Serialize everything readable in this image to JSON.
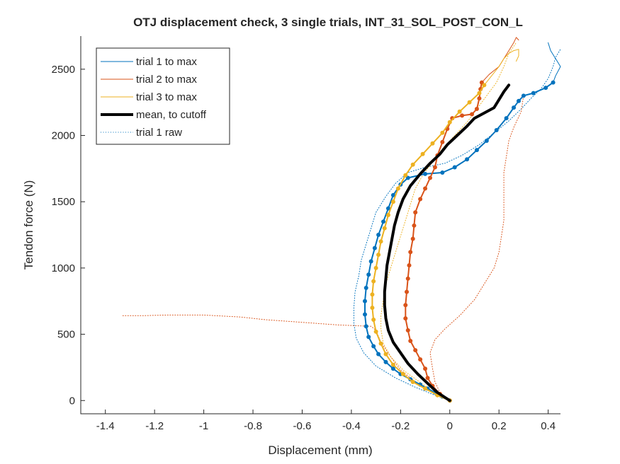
{
  "chart_data": {
    "type": "line",
    "title": "OTJ displacement check, 3 single trials, INT_31_SOL_POST_CON_L",
    "xlabel": "Displacement (mm)",
    "ylabel": "Tendon force (N)",
    "xlim": [
      -1.5,
      0.45
    ],
    "ylim": [
      -100,
      2750
    ],
    "xticks": [
      -1.4,
      -1.2,
      -1,
      -0.8,
      -0.6,
      -0.4,
      -0.2,
      0,
      0.2,
      0.4
    ],
    "xtick_labels": [
      "-1.4",
      "-1.2",
      "-1",
      "-0.8",
      "-0.6",
      "-0.4",
      "-0.2",
      "0",
      "0.2",
      "0.4"
    ],
    "yticks": [
      0,
      500,
      1000,
      1500,
      2000,
      2500
    ],
    "ytick_labels": [
      "0",
      "500",
      "1000",
      "1500",
      "2000",
      "2500"
    ],
    "grid": false,
    "legend_position": "top-left",
    "legend_entries": [
      "trial 1 to max",
      "trial 2 to max",
      "trial 3 to max",
      "mean, to cutoff",
      "trial 1 raw"
    ],
    "series": [
      {
        "name": "trial 1 to max",
        "color": "#0072BD",
        "style": "solid-dots",
        "points": [
          [
            0.0,
            0
          ],
          [
            -0.03,
            30
          ],
          [
            -0.06,
            60
          ],
          [
            -0.09,
            90
          ],
          [
            -0.12,
            120
          ],
          [
            -0.16,
            160
          ],
          [
            -0.2,
            200
          ],
          [
            -0.23,
            240
          ],
          [
            -0.26,
            290
          ],
          [
            -0.29,
            350
          ],
          [
            -0.31,
            410
          ],
          [
            -0.33,
            480
          ],
          [
            -0.34,
            560
          ],
          [
            -0.345,
            650
          ],
          [
            -0.345,
            750
          ],
          [
            -0.34,
            850
          ],
          [
            -0.33,
            950
          ],
          [
            -0.32,
            1050
          ],
          [
            -0.305,
            1150
          ],
          [
            -0.29,
            1250
          ],
          [
            -0.27,
            1350
          ],
          [
            -0.25,
            1450
          ],
          [
            -0.23,
            1550
          ],
          [
            -0.2,
            1630
          ],
          [
            -0.17,
            1680
          ],
          [
            -0.1,
            1710
          ],
          [
            -0.03,
            1720
          ],
          [
            0.02,
            1760
          ],
          [
            0.07,
            1820
          ],
          [
            0.11,
            1890
          ],
          [
            0.15,
            1960
          ],
          [
            0.19,
            2040
          ],
          [
            0.23,
            2130
          ],
          [
            0.26,
            2210
          ],
          [
            0.28,
            2260
          ],
          [
            0.3,
            2300
          ],
          [
            0.34,
            2320
          ],
          [
            0.39,
            2360
          ],
          [
            0.42,
            2400
          ]
        ]
      },
      {
        "name": "trial 1 to max",
        "color": "#0072BD",
        "style": "thin",
        "points": [
          [
            0.42,
            2400
          ],
          [
            0.43,
            2450
          ],
          [
            0.45,
            2520
          ],
          [
            0.43,
            2580
          ],
          [
            0.41,
            2640
          ],
          [
            0.4,
            2700
          ]
        ]
      },
      {
        "name": "trial 2 to max",
        "color": "#D95319",
        "style": "solid-dots",
        "points": [
          [
            0.0,
            0
          ],
          [
            -0.04,
            50
          ],
          [
            -0.07,
            110
          ],
          [
            -0.09,
            170
          ],
          [
            -0.1,
            240
          ],
          [
            -0.12,
            310
          ],
          [
            -0.14,
            380
          ],
          [
            -0.16,
            450
          ],
          [
            -0.17,
            530
          ],
          [
            -0.18,
            620
          ],
          [
            -0.18,
            720
          ],
          [
            -0.175,
            820
          ],
          [
            -0.17,
            920
          ],
          [
            -0.165,
            1020
          ],
          [
            -0.16,
            1120
          ],
          [
            -0.15,
            1220
          ],
          [
            -0.145,
            1320
          ],
          [
            -0.14,
            1420
          ],
          [
            -0.12,
            1520
          ],
          [
            -0.1,
            1600
          ],
          [
            -0.08,
            1680
          ],
          [
            -0.06,
            1760
          ],
          [
            -0.05,
            1850
          ],
          [
            -0.03,
            1950
          ],
          [
            -0.01,
            2050
          ],
          [
            0.01,
            2130
          ],
          [
            0.05,
            2150
          ],
          [
            0.09,
            2160
          ],
          [
            0.11,
            2200
          ],
          [
            0.12,
            2280
          ],
          [
            0.125,
            2350
          ],
          [
            0.13,
            2400
          ]
        ]
      },
      {
        "name": "trial 2 to max",
        "color": "#D95319",
        "style": "thin",
        "points": [
          [
            0.13,
            2400
          ],
          [
            0.16,
            2460
          ],
          [
            0.2,
            2520
          ],
          [
            0.22,
            2580
          ],
          [
            0.24,
            2640
          ],
          [
            0.26,
            2700
          ],
          [
            0.27,
            2740
          ],
          [
            0.28,
            2720
          ]
        ]
      },
      {
        "name": "trial 3 to max",
        "color": "#EDB120",
        "style": "solid-dots",
        "points": [
          [
            0.0,
            0
          ],
          [
            -0.05,
            40
          ],
          [
            -0.1,
            90
          ],
          [
            -0.15,
            140
          ],
          [
            -0.19,
            200
          ],
          [
            -0.23,
            270
          ],
          [
            -0.26,
            350
          ],
          [
            -0.28,
            430
          ],
          [
            -0.3,
            520
          ],
          [
            -0.31,
            610
          ],
          [
            -0.315,
            700
          ],
          [
            -0.315,
            800
          ],
          [
            -0.31,
            900
          ],
          [
            -0.3,
            1000
          ],
          [
            -0.29,
            1100
          ],
          [
            -0.28,
            1200
          ],
          [
            -0.265,
            1300
          ],
          [
            -0.25,
            1400
          ],
          [
            -0.23,
            1500
          ],
          [
            -0.21,
            1600
          ],
          [
            -0.18,
            1700
          ],
          [
            -0.15,
            1780
          ],
          [
            -0.11,
            1860
          ],
          [
            -0.07,
            1940
          ],
          [
            -0.03,
            2020
          ],
          [
            0.0,
            2100
          ],
          [
            0.04,
            2180
          ],
          [
            0.08,
            2250
          ],
          [
            0.12,
            2320
          ],
          [
            0.14,
            2380
          ]
        ]
      },
      {
        "name": "trial 3 to max",
        "color": "#EDB120",
        "style": "thin",
        "points": [
          [
            0.14,
            2380
          ],
          [
            0.17,
            2450
          ],
          [
            0.2,
            2520
          ],
          [
            0.22,
            2580
          ],
          [
            0.24,
            2620
          ],
          [
            0.26,
            2640
          ],
          [
            0.28,
            2650
          ],
          [
            0.28,
            2600
          ],
          [
            0.27,
            2560
          ]
        ]
      },
      {
        "name": "mean, to cutoff",
        "color": "#000000",
        "style": "thick",
        "points": [
          [
            0.0,
            0
          ],
          [
            -0.05,
            60
          ],
          [
            -0.09,
            130
          ],
          [
            -0.13,
            200
          ],
          [
            -0.17,
            280
          ],
          [
            -0.2,
            360
          ],
          [
            -0.23,
            440
          ],
          [
            -0.25,
            530
          ],
          [
            -0.26,
            620
          ],
          [
            -0.265,
            720
          ],
          [
            -0.265,
            820
          ],
          [
            -0.26,
            920
          ],
          [
            -0.255,
            1020
          ],
          [
            -0.245,
            1120
          ],
          [
            -0.235,
            1220
          ],
          [
            -0.225,
            1320
          ],
          [
            -0.21,
            1420
          ],
          [
            -0.19,
            1520
          ],
          [
            -0.16,
            1620
          ],
          [
            -0.12,
            1710
          ],
          [
            -0.08,
            1790
          ],
          [
            -0.04,
            1860
          ],
          [
            -0.01,
            1930
          ],
          [
            0.03,
            2000
          ],
          [
            0.07,
            2070
          ],
          [
            0.1,
            2130
          ],
          [
            0.14,
            2170
          ],
          [
            0.18,
            2210
          ],
          [
            0.2,
            2270
          ],
          [
            0.22,
            2330
          ],
          [
            0.24,
            2380
          ]
        ]
      },
      {
        "name": "trial 1 raw",
        "color": "#0072BD",
        "style": "dotted",
        "points": [
          [
            0.0,
            0
          ],
          [
            -0.06,
            40
          ],
          [
            -0.14,
            100
          ],
          [
            -0.22,
            170
          ],
          [
            -0.3,
            260
          ],
          [
            -0.35,
            360
          ],
          [
            -0.38,
            470
          ],
          [
            -0.39,
            580
          ],
          [
            -0.39,
            700
          ],
          [
            -0.385,
            820
          ],
          [
            -0.37,
            940
          ],
          [
            -0.36,
            1060
          ],
          [
            -0.34,
            1180
          ],
          [
            -0.32,
            1300
          ],
          [
            -0.3,
            1420
          ],
          [
            -0.26,
            1540
          ],
          [
            -0.22,
            1640
          ],
          [
            -0.17,
            1720
          ],
          [
            -0.1,
            1760
          ],
          [
            -0.02,
            1790
          ],
          [
            0.05,
            1850
          ],
          [
            0.12,
            1930
          ],
          [
            0.18,
            2020
          ],
          [
            0.24,
            2110
          ],
          [
            0.29,
            2200
          ],
          [
            0.33,
            2280
          ],
          [
            0.37,
            2350
          ],
          [
            0.4,
            2430
          ],
          [
            0.42,
            2520
          ],
          [
            0.43,
            2590
          ],
          [
            0.45,
            2650
          ]
        ]
      },
      {
        "name": "",
        "color": "#D95319",
        "style": "dotted",
        "points": [
          [
            0.0,
            0
          ],
          [
            -0.08,
            70
          ],
          [
            -0.14,
            140
          ],
          [
            -0.2,
            230
          ],
          [
            -0.24,
            330
          ],
          [
            -0.28,
            440
          ],
          [
            -0.3,
            530
          ],
          [
            -0.32,
            560
          ],
          [
            -0.45,
            570
          ],
          [
            -0.6,
            590
          ],
          [
            -0.75,
            610
          ],
          [
            -0.85,
            630
          ],
          [
            -1.0,
            645
          ],
          [
            -1.15,
            645
          ],
          [
            -1.25,
            640
          ],
          [
            -1.33,
            640
          ]
        ]
      },
      {
        "name": "",
        "color": "#D95319",
        "style": "dotted",
        "points": [
          [
            0.0,
            0
          ],
          [
            -0.04,
            60
          ],
          [
            -0.06,
            140
          ],
          [
            -0.07,
            240
          ],
          [
            -0.08,
            360
          ],
          [
            -0.06,
            460
          ],
          [
            -0.02,
            540
          ],
          [
            0.04,
            640
          ],
          [
            0.1,
            760
          ],
          [
            0.14,
            880
          ],
          [
            0.18,
            1000
          ],
          [
            0.2,
            1120
          ],
          [
            0.21,
            1240
          ],
          [
            0.22,
            1360
          ],
          [
            0.22,
            1480
          ],
          [
            0.22,
            1600
          ],
          [
            0.22,
            1720
          ],
          [
            0.23,
            1840
          ],
          [
            0.24,
            1960
          ],
          [
            0.26,
            2060
          ],
          [
            0.29,
            2180
          ],
          [
            0.3,
            2300
          ]
        ]
      },
      {
        "name": "",
        "color": "#EDB120",
        "style": "dotted",
        "points": [
          [
            0.0,
            0
          ],
          [
            -0.07,
            70
          ],
          [
            -0.13,
            150
          ],
          [
            -0.19,
            230
          ],
          [
            -0.24,
            330
          ],
          [
            -0.27,
            430
          ],
          [
            -0.28,
            540
          ],
          [
            -0.28,
            640
          ],
          [
            -0.27,
            760
          ],
          [
            -0.26,
            880
          ],
          [
            -0.24,
            1000
          ],
          [
            -0.22,
            1120
          ],
          [
            -0.2,
            1240
          ],
          [
            -0.18,
            1360
          ],
          [
            -0.16,
            1480
          ],
          [
            -0.14,
            1600
          ],
          [
            -0.11,
            1700
          ],
          [
            -0.07,
            1800
          ],
          [
            -0.03,
            1900
          ],
          [
            0.02,
            2000
          ],
          [
            0.07,
            2100
          ],
          [
            0.11,
            2200
          ],
          [
            0.15,
            2300
          ],
          [
            0.19,
            2400
          ],
          [
            0.22,
            2520
          ],
          [
            0.24,
            2620
          ],
          [
            0.27,
            2700
          ]
        ]
      }
    ]
  }
}
